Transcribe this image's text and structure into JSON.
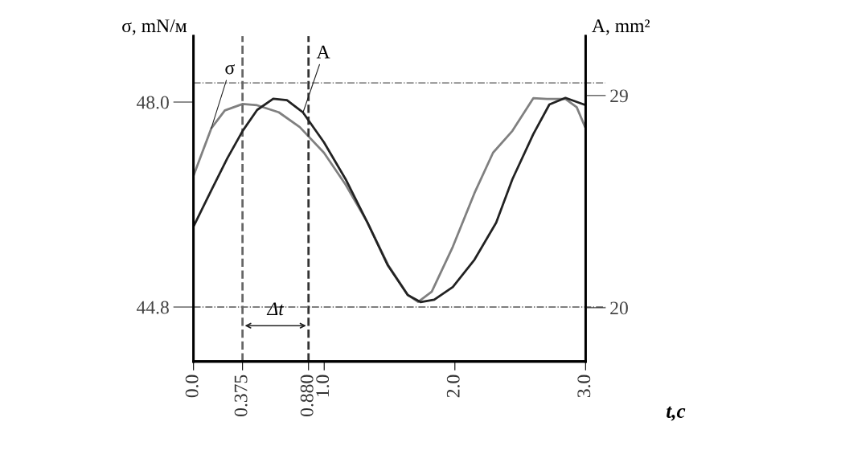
{
  "chart_data": {
    "type": "line",
    "xlabel": "t,c",
    "ylabel": "σ, mN/м",
    "y2label": "A, mm²",
    "x": [
      0.004,
      0.136,
      0.24,
      0.376,
      0.487,
      0.653,
      0.813,
      0.998,
      1.164,
      1.331,
      1.491,
      1.639,
      1.719,
      1.823,
      1.984,
      2.15,
      2.292,
      2.44,
      2.6,
      2.704,
      2.846,
      2.932,
      2.994
    ],
    "series": [
      {
        "name": "σ",
        "color": "#808080",
        "values": [
          46.87,
          47.59,
          47.87,
          47.97,
          47.95,
          47.84,
          47.61,
          47.21,
          46.71,
          46.12,
          45.45,
          44.99,
          44.88,
          45.04,
          45.74,
          46.58,
          47.21,
          47.55,
          48.06,
          48.05,
          48.05,
          47.92,
          47.62
        ]
      },
      {
        "name": "A",
        "color": "#222222",
        "axis": "y2",
        "x": [
          0.006,
          0.136,
          0.259,
          0.376,
          0.487,
          0.61,
          0.715,
          0.838,
          0.998,
          1.164,
          1.331,
          1.485,
          1.639,
          1.737,
          1.842,
          1.984,
          2.15,
          2.316,
          2.44,
          2.6,
          2.723,
          2.846,
          2.988
        ],
        "values": [
          23.51,
          24.98,
          26.34,
          27.5,
          28.39,
          28.86,
          28.8,
          28.28,
          27.02,
          25.45,
          23.61,
          21.81,
          20.54,
          20.24,
          20.34,
          20.88,
          22.04,
          23.61,
          25.45,
          27.36,
          28.62,
          28.9,
          28.62
        ]
      }
    ],
    "xlim": [
      0,
      3
    ],
    "xticks": [
      {
        "value": 0,
        "label": "0.0"
      },
      0.375,
      {
        "value": 0.88,
        "label": "0.880"
      },
      {
        "value": 1,
        "label": "1.0"
      },
      {
        "value": 2,
        "label": "2.0"
      },
      {
        "value": 3,
        "label": "3.0"
      }
    ],
    "ylim": [
      43.95,
      49.03
    ],
    "yticks": [
      {
        "value": 44.8,
        "label": "44.8"
      },
      {
        "value": 48,
        "label": "48.0"
      }
    ],
    "y2lim": [
      17.72,
      31.52
    ],
    "y2ticks": [
      20,
      29
    ],
    "ref_lines": [
      {
        "axis": "y",
        "value": 48.3,
        "color": "#555555",
        "line_style": "dashdot"
      },
      {
        "axis": "y",
        "value": 44.8,
        "color": "#555555",
        "line_style": "dashdot"
      },
      {
        "axis": "x",
        "value": 0.375,
        "color": "#666666",
        "line_style": "dashed"
      },
      {
        "axis": "x",
        "value": 0.88,
        "color": "#333333",
        "line_style": "dashed"
      }
    ],
    "annotations": [
      "Δt"
    ],
    "line_style": "solid",
    "marker": "none",
    "grid": false,
    "legend": false
  }
}
